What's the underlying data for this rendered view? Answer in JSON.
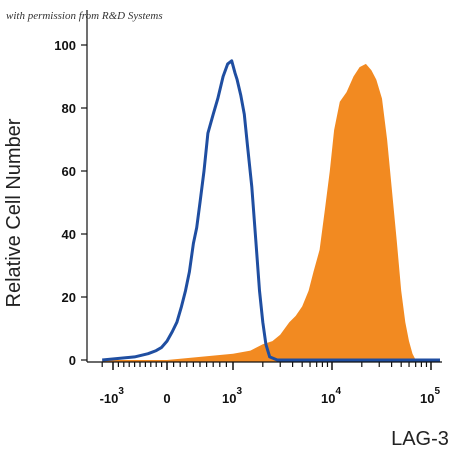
{
  "watermark": "with permission from R&D Systems",
  "chart_data": {
    "type": "area",
    "xlabel": "LAG-3",
    "ylabel": "Relative Cell Number",
    "ylim": [
      0,
      100
    ],
    "y_ticks": [
      "0",
      "20",
      "40",
      "60",
      "80",
      "100"
    ],
    "x_ticks": [
      {
        "base": "-10",
        "exp": "3",
        "value": -1000
      },
      {
        "base": "0",
        "exp": "",
        "value": 0
      },
      {
        "base": "10",
        "exp": "3",
        "value": 1000
      },
      {
        "base": "10",
        "exp": "4",
        "value": 10000
      },
      {
        "base": "10",
        "exp": "5",
        "value": 100000
      }
    ],
    "x_scale": "biexponential",
    "series": [
      {
        "style": "outline",
        "color": "#1f4ea1",
        "points": [
          [
            -1200,
            0
          ],
          [
            -600,
            1
          ],
          [
            -350,
            2
          ],
          [
            -200,
            3
          ],
          [
            -100,
            4
          ],
          [
            0,
            6
          ],
          [
            80,
            9
          ],
          [
            150,
            12
          ],
          [
            220,
            17
          ],
          [
            280,
            22
          ],
          [
            340,
            28
          ],
          [
            400,
            37
          ],
          [
            450,
            42
          ],
          [
            500,
            50
          ],
          [
            560,
            60
          ],
          [
            620,
            72
          ],
          [
            700,
            78
          ],
          [
            770,
            83
          ],
          [
            850,
            90
          ],
          [
            920,
            94
          ],
          [
            980,
            95
          ],
          [
            1050,
            91
          ],
          [
            1100,
            89
          ],
          [
            1200,
            84
          ],
          [
            1300,
            78
          ],
          [
            1400,
            68
          ],
          [
            1550,
            55
          ],
          [
            1700,
            38
          ],
          [
            1850,
            22
          ],
          [
            2000,
            12
          ],
          [
            2150,
            5
          ],
          [
            2350,
            1
          ],
          [
            2800,
            0
          ],
          [
            200000,
            0
          ]
        ]
      },
      {
        "style": "filled",
        "color": "#f28a21",
        "points": [
          [
            -1200,
            0
          ],
          [
            0,
            0
          ],
          [
            500,
            1
          ],
          [
            1000,
            2
          ],
          [
            1500,
            3
          ],
          [
            2000,
            5
          ],
          [
            2500,
            6
          ],
          [
            3000,
            8
          ],
          [
            3700,
            12
          ],
          [
            4300,
            14
          ],
          [
            5000,
            17
          ],
          [
            5800,
            22
          ],
          [
            6500,
            28
          ],
          [
            7500,
            35
          ],
          [
            8500,
            48
          ],
          [
            9500,
            60
          ],
          [
            10500,
            73
          ],
          [
            12000,
            82
          ],
          [
            14000,
            85
          ],
          [
            16500,
            90
          ],
          [
            19000,
            93
          ],
          [
            22000,
            94
          ],
          [
            25000,
            92
          ],
          [
            28000,
            89
          ],
          [
            32000,
            83
          ],
          [
            36000,
            70
          ],
          [
            40000,
            55
          ],
          [
            45000,
            38
          ],
          [
            50000,
            22
          ],
          [
            55000,
            12
          ],
          [
            60000,
            6
          ],
          [
            65000,
            2
          ],
          [
            70000,
            0
          ],
          [
            200000,
            0
          ]
        ]
      }
    ]
  }
}
